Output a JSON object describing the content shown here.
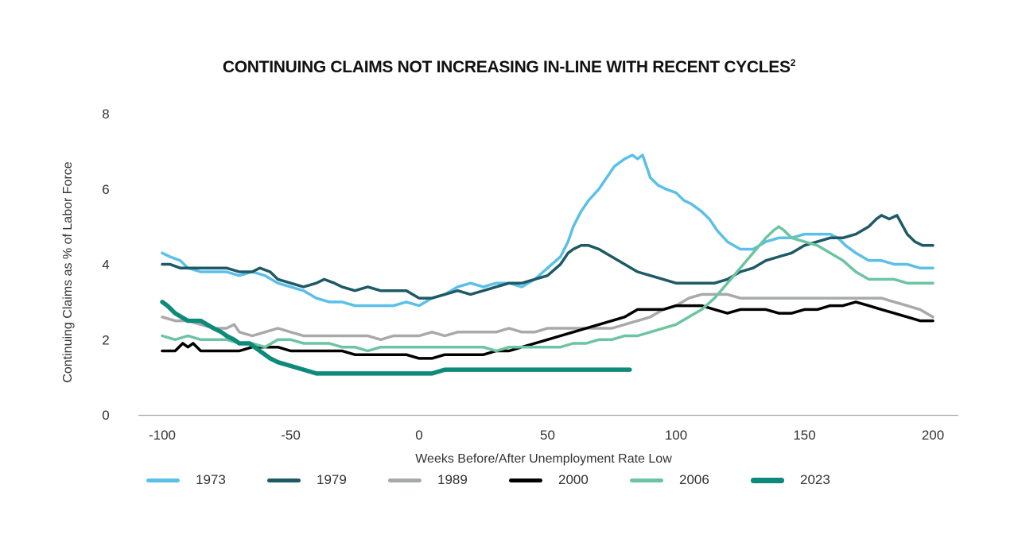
{
  "chart_data": {
    "type": "line",
    "title": "CONTINUING CLAIMS NOT INCREASING IN-LINE WITH RECENT CYCLES",
    "title_superscript": "2",
    "xlabel": "Weeks Before/After Unemployment Rate Low",
    "ylabel": "Continuing Claims as % of Labor Force",
    "xlim": [
      -100,
      200
    ],
    "ylim": [
      0,
      8
    ],
    "xticks": [
      -100,
      -50,
      0,
      50,
      100,
      150,
      200
    ],
    "yticks": [
      0,
      2,
      4,
      6,
      8
    ],
    "grid": false,
    "legend_position": "bottom",
    "series": [
      {
        "name": "1973",
        "color": "#5bc0e8",
        "thick": false,
        "x": [
          -100,
          -97,
          -93,
          -90,
          -85,
          -80,
          -75,
          -70,
          -65,
          -60,
          -55,
          -50,
          -45,
          -40,
          -35,
          -30,
          -25,
          -20,
          -15,
          -10,
          -5,
          0,
          5,
          10,
          15,
          20,
          25,
          30,
          35,
          40,
          45,
          50,
          55,
          58,
          60,
          63,
          66,
          70,
          73,
          76,
          80,
          83,
          85,
          87,
          90,
          93,
          96,
          100,
          103,
          106,
          110,
          113,
          116,
          120,
          125,
          130,
          135,
          140,
          145,
          150,
          155,
          160,
          163,
          166,
          170,
          175,
          180,
          185,
          190,
          195,
          200
        ],
        "y": [
          4.3,
          4.2,
          4.1,
          3.9,
          3.8,
          3.8,
          3.8,
          3.7,
          3.8,
          3.7,
          3.5,
          3.4,
          3.3,
          3.1,
          3.0,
          3.0,
          2.9,
          2.9,
          2.9,
          2.9,
          3.0,
          2.9,
          3.1,
          3.2,
          3.4,
          3.5,
          3.4,
          3.5,
          3.5,
          3.4,
          3.6,
          3.9,
          4.2,
          4.6,
          5.0,
          5.4,
          5.7,
          6.0,
          6.3,
          6.6,
          6.8,
          6.9,
          6.8,
          6.9,
          6.3,
          6.1,
          6.0,
          5.9,
          5.7,
          5.6,
          5.4,
          5.2,
          4.9,
          4.6,
          4.4,
          4.4,
          4.6,
          4.7,
          4.7,
          4.8,
          4.8,
          4.8,
          4.7,
          4.5,
          4.3,
          4.1,
          4.1,
          4.0,
          4.0,
          3.9,
          3.9
        ]
      },
      {
        "name": "1979",
        "color": "#1d5a66",
        "thick": false,
        "x": [
          -100,
          -97,
          -93,
          -90,
          -85,
          -80,
          -75,
          -70,
          -65,
          -62,
          -58,
          -55,
          -50,
          -45,
          -40,
          -37,
          -33,
          -30,
          -25,
          -20,
          -15,
          -10,
          -5,
          0,
          5,
          10,
          15,
          20,
          25,
          30,
          35,
          40,
          45,
          50,
          55,
          58,
          60,
          63,
          66,
          70,
          75,
          80,
          85,
          90,
          95,
          100,
          105,
          110,
          115,
          120,
          125,
          130,
          135,
          140,
          145,
          150,
          155,
          160,
          165,
          170,
          175,
          178,
          180,
          183,
          186,
          190,
          193,
          196,
          200
        ],
        "y": [
          4.0,
          4.0,
          3.9,
          3.9,
          3.9,
          3.9,
          3.9,
          3.8,
          3.8,
          3.9,
          3.8,
          3.6,
          3.5,
          3.4,
          3.5,
          3.6,
          3.5,
          3.4,
          3.3,
          3.4,
          3.3,
          3.3,
          3.3,
          3.1,
          3.1,
          3.2,
          3.3,
          3.2,
          3.3,
          3.4,
          3.5,
          3.5,
          3.6,
          3.7,
          4.0,
          4.3,
          4.4,
          4.5,
          4.5,
          4.4,
          4.2,
          4.0,
          3.8,
          3.7,
          3.6,
          3.5,
          3.5,
          3.5,
          3.5,
          3.6,
          3.8,
          3.9,
          4.1,
          4.2,
          4.3,
          4.5,
          4.6,
          4.7,
          4.7,
          4.8,
          5.0,
          5.2,
          5.3,
          5.2,
          5.3,
          4.8,
          4.6,
          4.5,
          4.5
        ]
      },
      {
        "name": "1989",
        "color": "#a8a9ab",
        "thick": false,
        "x": [
          -100,
          -95,
          -90,
          -85,
          -80,
          -75,
          -72,
          -70,
          -65,
          -60,
          -55,
          -50,
          -45,
          -40,
          -35,
          -30,
          -25,
          -20,
          -15,
          -10,
          -5,
          0,
          5,
          10,
          15,
          20,
          25,
          30,
          35,
          40,
          45,
          50,
          55,
          60,
          65,
          70,
          75,
          80,
          85,
          90,
          95,
          100,
          105,
          110,
          115,
          120,
          125,
          130,
          135,
          140,
          145,
          150,
          155,
          160,
          165,
          170,
          175,
          180,
          185,
          190,
          195,
          200
        ],
        "y": [
          2.6,
          2.5,
          2.5,
          2.4,
          2.3,
          2.3,
          2.4,
          2.2,
          2.1,
          2.2,
          2.3,
          2.2,
          2.1,
          2.1,
          2.1,
          2.1,
          2.1,
          2.1,
          2.0,
          2.1,
          2.1,
          2.1,
          2.2,
          2.1,
          2.2,
          2.2,
          2.2,
          2.2,
          2.3,
          2.2,
          2.2,
          2.3,
          2.3,
          2.3,
          2.3,
          2.3,
          2.3,
          2.4,
          2.5,
          2.6,
          2.8,
          2.9,
          3.1,
          3.2,
          3.2,
          3.2,
          3.1,
          3.1,
          3.1,
          3.1,
          3.1,
          3.1,
          3.1,
          3.1,
          3.1,
          3.1,
          3.1,
          3.1,
          3.0,
          2.9,
          2.8,
          2.6
        ]
      },
      {
        "name": "2000",
        "color": "#000000",
        "thick": false,
        "x": [
          -100,
          -95,
          -92,
          -90,
          -88,
          -85,
          -80,
          -75,
          -70,
          -65,
          -60,
          -55,
          -50,
          -45,
          -40,
          -35,
          -30,
          -25,
          -20,
          -15,
          -10,
          -5,
          0,
          5,
          10,
          15,
          20,
          25,
          30,
          35,
          40,
          45,
          50,
          55,
          60,
          65,
          70,
          75,
          80,
          85,
          90,
          95,
          100,
          105,
          110,
          115,
          120,
          125,
          130,
          135,
          140,
          145,
          150,
          155,
          160,
          165,
          170,
          175,
          180,
          185,
          190,
          195,
          200
        ],
        "y": [
          1.7,
          1.7,
          1.9,
          1.8,
          1.9,
          1.7,
          1.7,
          1.7,
          1.7,
          1.8,
          1.8,
          1.8,
          1.7,
          1.7,
          1.7,
          1.7,
          1.7,
          1.6,
          1.6,
          1.6,
          1.6,
          1.6,
          1.5,
          1.5,
          1.6,
          1.6,
          1.6,
          1.6,
          1.7,
          1.7,
          1.8,
          1.9,
          2.0,
          2.1,
          2.2,
          2.3,
          2.4,
          2.5,
          2.6,
          2.8,
          2.8,
          2.8,
          2.9,
          2.9,
          2.9,
          2.8,
          2.7,
          2.8,
          2.8,
          2.8,
          2.7,
          2.7,
          2.8,
          2.8,
          2.9,
          2.9,
          3.0,
          2.9,
          2.8,
          2.7,
          2.6,
          2.5,
          2.5
        ]
      },
      {
        "name": "2006",
        "color": "#6cc4a0",
        "thick": false,
        "x": [
          -100,
          -95,
          -90,
          -85,
          -80,
          -75,
          -70,
          -65,
          -60,
          -55,
          -50,
          -45,
          -40,
          -35,
          -30,
          -25,
          -20,
          -15,
          -10,
          -5,
          0,
          5,
          10,
          15,
          20,
          25,
          30,
          35,
          40,
          45,
          50,
          55,
          60,
          65,
          70,
          75,
          80,
          85,
          90,
          95,
          100,
          105,
          110,
          115,
          120,
          125,
          130,
          135,
          138,
          140,
          142,
          145,
          150,
          155,
          160,
          165,
          170,
          175,
          180,
          185,
          190,
          195,
          200
        ],
        "y": [
          2.1,
          2.0,
          2.1,
          2.0,
          2.0,
          2.0,
          1.9,
          1.9,
          1.8,
          2.0,
          2.0,
          1.9,
          1.9,
          1.9,
          1.8,
          1.8,
          1.7,
          1.8,
          1.8,
          1.8,
          1.8,
          1.8,
          1.8,
          1.8,
          1.8,
          1.8,
          1.7,
          1.8,
          1.8,
          1.8,
          1.8,
          1.8,
          1.9,
          1.9,
          2.0,
          2.0,
          2.1,
          2.1,
          2.2,
          2.3,
          2.4,
          2.6,
          2.8,
          3.1,
          3.5,
          3.9,
          4.3,
          4.7,
          4.9,
          5.0,
          4.9,
          4.7,
          4.6,
          4.5,
          4.3,
          4.1,
          3.8,
          3.6,
          3.6,
          3.6,
          3.5,
          3.5,
          3.5
        ]
      },
      {
        "name": "2023",
        "color": "#0e8a7a",
        "thick": true,
        "x": [
          -100,
          -98,
          -95,
          -90,
          -85,
          -80,
          -77,
          -75,
          -72,
          -70,
          -66,
          -62,
          -58,
          -55,
          -50,
          -45,
          -40,
          -35,
          -30,
          -25,
          -20,
          -15,
          -10,
          -5,
          0,
          5,
          10,
          15,
          20,
          25,
          30,
          40,
          50,
          60,
          70,
          80,
          82
        ],
        "y": [
          3.0,
          2.9,
          2.7,
          2.5,
          2.5,
          2.3,
          2.2,
          2.1,
          2.0,
          1.9,
          1.9,
          1.7,
          1.5,
          1.4,
          1.3,
          1.2,
          1.1,
          1.1,
          1.1,
          1.1,
          1.1,
          1.1,
          1.1,
          1.1,
          1.1,
          1.1,
          1.2,
          1.2,
          1.2,
          1.2,
          1.2,
          1.2,
          1.2,
          1.2,
          1.2,
          1.2,
          1.2
        ]
      }
    ]
  }
}
